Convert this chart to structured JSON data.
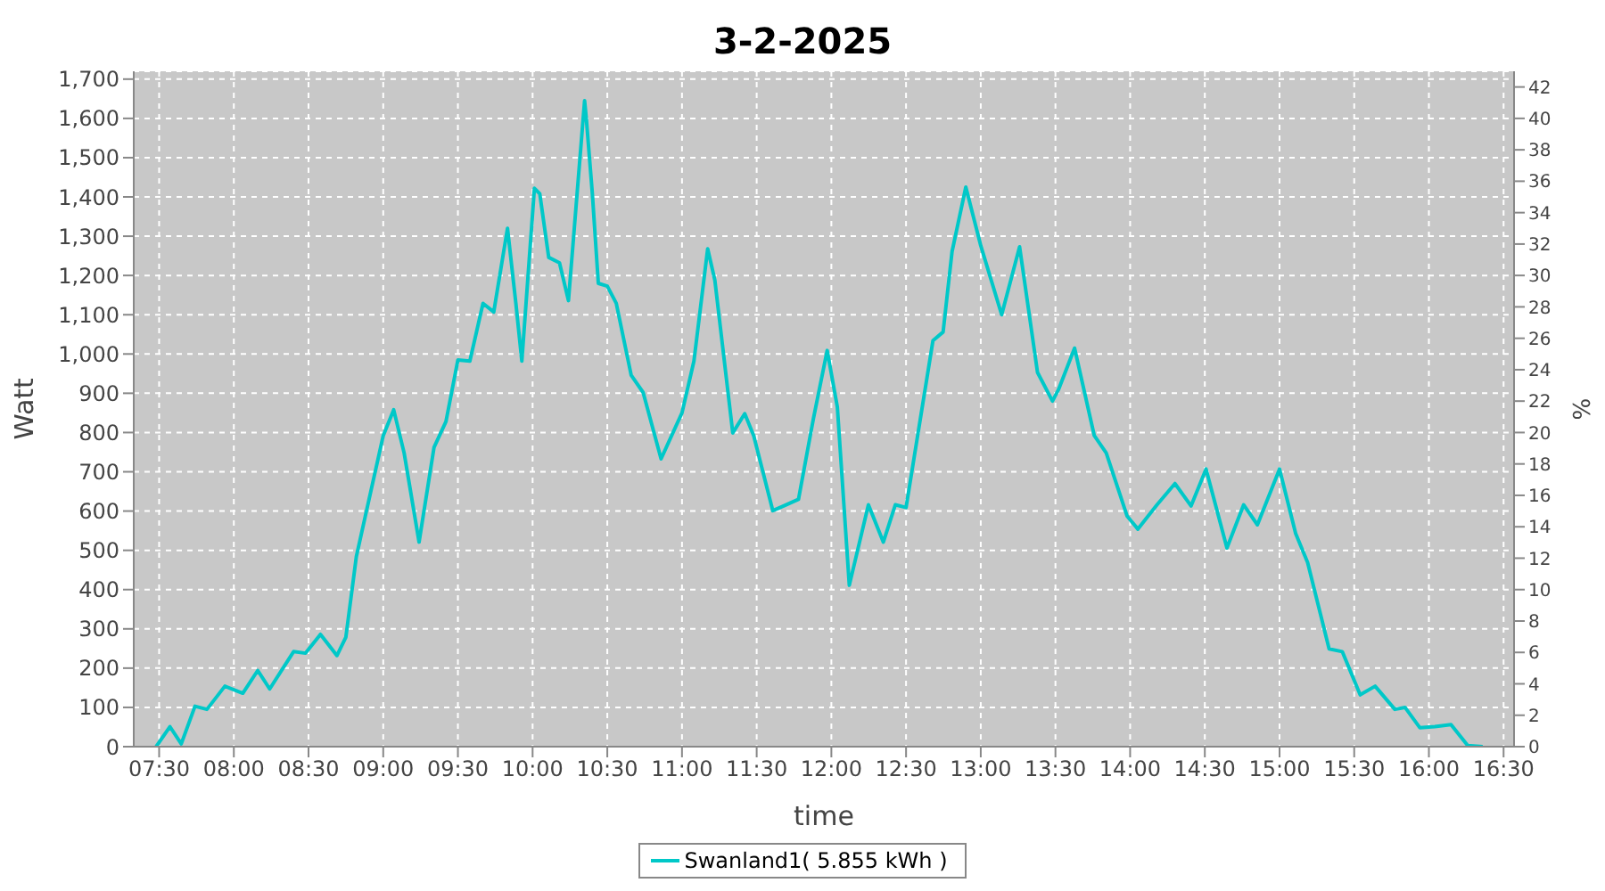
{
  "chart_data": {
    "type": "line",
    "title": "3-2-2025",
    "xlabel": "time",
    "ylabel": "Watt",
    "y2label": "%",
    "x": [
      7.48,
      7.572,
      7.648,
      7.74,
      7.82,
      7.94,
      8.06,
      8.16,
      8.24,
      8.4,
      8.48,
      8.58,
      8.69,
      8.75,
      8.82,
      8.88,
      9.0,
      9.07,
      9.14,
      9.24,
      9.34,
      9.42,
      9.5,
      9.58,
      9.668,
      9.74,
      9.832,
      9.888,
      9.928,
      10.012,
      10.048,
      10.108,
      10.18,
      10.24,
      10.348,
      10.36,
      10.4,
      10.44,
      10.5,
      10.56,
      10.66,
      10.74,
      10.86,
      11.0,
      11.08,
      11.172,
      11.22,
      11.34,
      11.42,
      11.48,
      11.608,
      11.68,
      11.78,
      11.88,
      11.972,
      12.04,
      12.12,
      12.248,
      12.348,
      12.428,
      12.5,
      12.68,
      12.748,
      12.808,
      12.9,
      13.0,
      13.14,
      13.26,
      13.38,
      13.48,
      13.52,
      13.628,
      13.76,
      13.84,
      13.98,
      14.052,
      14.18,
      14.3,
      14.408,
      14.508,
      14.648,
      14.76,
      14.852,
      15.0,
      15.108,
      15.188,
      15.332,
      15.42,
      15.54,
      15.64,
      15.772,
      15.84,
      15.94,
      16.04,
      16.148,
      16.26,
      16.36
    ],
    "series": [
      {
        "name": "Swanland1( 5.855 kWh )",
        "color": "#00c8c8",
        "values": [
          0,
          51,
          7,
          103,
          95,
          154,
          136,
          194,
          147,
          242,
          238,
          286,
          232,
          279,
          484,
          587,
          792,
          858,
          748,
          521,
          762,
          828,
          985,
          982,
          1129,
          1107,
          1320,
          1129,
          982,
          1422,
          1408,
          1246,
          1232,
          1136,
          1645,
          1598,
          1408,
          1180,
          1173,
          1129,
          946,
          902,
          733,
          850,
          982,
          1268,
          1188,
          799,
          848,
          792,
          601,
          613,
          630,
          836,
          1009,
          865,
          411,
          616,
          521,
          616,
          609,
          1034,
          1056,
          1261,
          1425,
          1276,
          1100,
          1273,
          953,
          880,
          909,
          1015,
          792,
          748,
          587,
          554,
          616,
          670,
          613,
          707,
          506,
          616,
          565,
          707,
          543,
          469,
          249,
          242,
          132,
          154,
          95,
          100,
          48,
          51,
          56,
          3,
          0
        ]
      }
    ],
    "xlim": [
      7.33,
      16.57
    ],
    "xticks": [
      {
        "value": 7.5,
        "label": "07:30"
      },
      {
        "value": 8,
        "label": "08:00"
      },
      {
        "value": 8.5,
        "label": "08:30"
      },
      {
        "value": 9,
        "label": "09:00"
      },
      {
        "value": 9.5,
        "label": "09:30"
      },
      {
        "value": 10,
        "label": "10:00"
      },
      {
        "value": 10.5,
        "label": "10:30"
      },
      {
        "value": 11,
        "label": "11:00"
      },
      {
        "value": 11.5,
        "label": "11:30"
      },
      {
        "value": 12,
        "label": "12:00"
      },
      {
        "value": 12.5,
        "label": "12:30"
      },
      {
        "value": 13,
        "label": "13:00"
      },
      {
        "value": 13.5,
        "label": "13:30"
      },
      {
        "value": 14,
        "label": "14:00"
      },
      {
        "value": 14.5,
        "label": "14:30"
      },
      {
        "value": 15,
        "label": "15:00"
      },
      {
        "value": 15.5,
        "label": "15:30"
      },
      {
        "value": 16,
        "label": "16:00"
      },
      {
        "value": 16.5,
        "label": "16:30"
      }
    ],
    "ylim": [
      0,
      1720
    ],
    "yticks": [
      0,
      100,
      200,
      300,
      400,
      500,
      600,
      700,
      800,
      900,
      {
        "value": 1000,
        "label": "1,000"
      },
      {
        "value": 1100,
        "label": "1,100"
      },
      {
        "value": 1200,
        "label": "1,200"
      },
      {
        "value": 1300,
        "label": "1,300"
      },
      {
        "value": 1400,
        "label": "1,400"
      },
      {
        "value": 1500,
        "label": "1,500"
      },
      {
        "value": 1600,
        "label": "1,600"
      },
      {
        "value": 1700,
        "label": "1,700"
      }
    ],
    "y2lim": [
      0,
      43
    ],
    "y2ticks": [
      0,
      2,
      4,
      6,
      8,
      10,
      12,
      14,
      16,
      18,
      20,
      22,
      24,
      26,
      28,
      30,
      32,
      34,
      36,
      38,
      40,
      42
    ],
    "grid": true,
    "legend": "bottom",
    "marker": "none",
    "line_style": "solid"
  }
}
